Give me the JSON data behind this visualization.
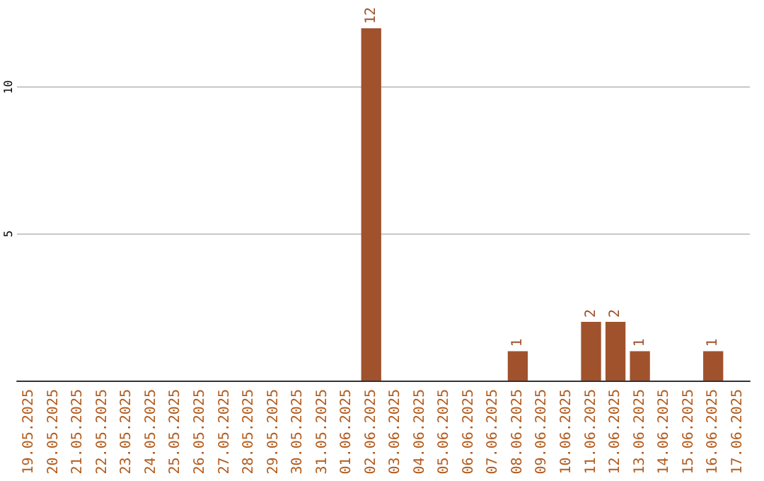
{
  "chart_data": {
    "type": "bar",
    "categories": [
      "19.05.2025",
      "20.05.2025",
      "21.05.2025",
      "22.05.2025",
      "23.05.2025",
      "24.05.2025",
      "25.05.2025",
      "26.05.2025",
      "27.05.2025",
      "28.05.2025",
      "29.05.2025",
      "30.05.2025",
      "31.05.2025",
      "01.06.2025",
      "02.06.2025",
      "03.06.2025",
      "04.06.2025",
      "05.06.2025",
      "06.06.2025",
      "07.06.2025",
      "08.06.2025",
      "09.06.2025",
      "10.06.2025",
      "11.06.2025",
      "12.06.2025",
      "13.06.2025",
      "14.06.2025",
      "15.06.2025",
      "16.06.2025",
      "17.06.2025"
    ],
    "values": [
      0,
      0,
      0,
      0,
      0,
      0,
      0,
      0,
      0,
      0,
      0,
      0,
      0,
      0,
      12,
      0,
      0,
      0,
      0,
      0,
      1,
      0,
      0,
      2,
      2,
      1,
      0,
      0,
      1,
      0
    ],
    "value_labels": [
      null,
      null,
      null,
      null,
      null,
      null,
      null,
      null,
      null,
      null,
      null,
      null,
      null,
      null,
      "12",
      null,
      null,
      null,
      null,
      null,
      "1",
      null,
      null,
      "2",
      "2",
      "1",
      null,
      null,
      "1",
      null
    ],
    "color": "#a0522d",
    "ylim": [
      0,
      12
    ],
    "yticks": [
      5,
      10
    ],
    "grid": "y"
  }
}
